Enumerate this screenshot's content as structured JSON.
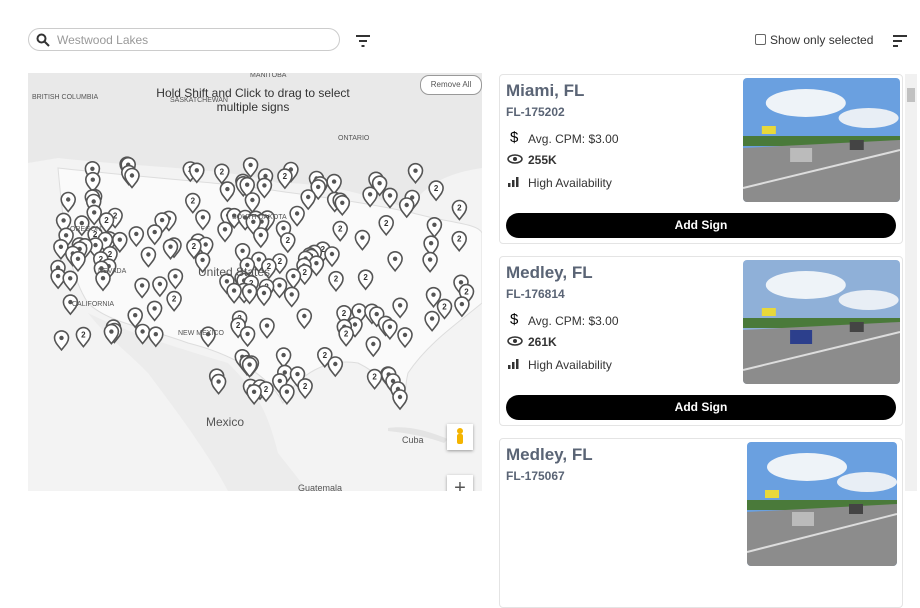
{
  "search": {
    "placeholder": "Westwood Lakes"
  },
  "filter": {
    "show_only_selected": "Show only selected"
  },
  "map": {
    "hint": "Hold Shift and Click to drag to select multiple signs",
    "remove_all": "Remove All",
    "zoom_in": "+",
    "cluster_label": "2",
    "labels": [
      "BRITISH COLUMBIA",
      "MANITOBA",
      "SASKATCHEWAN",
      "ONTARIO",
      "OREGON",
      "SOUTH DAKOTA",
      "NEVADA",
      "CALIFORNIA",
      "NEW MEXICO",
      "United States",
      "Mexico",
      "Cuba",
      "Guatemala"
    ]
  },
  "signs": [
    {
      "city": "Miami, FL",
      "id": "FL-175202",
      "cpm": "Avg. CPM: $3.00",
      "impressions": "255K",
      "availability": "High Availability",
      "button": "Add Sign"
    },
    {
      "city": "Medley, FL",
      "id": "FL-176814",
      "cpm": "Avg. CPM: $3.00",
      "impressions": "261K",
      "availability": "High Availability",
      "button": "Add Sign"
    },
    {
      "city": "Medley, FL",
      "id": "FL-175067"
    }
  ]
}
